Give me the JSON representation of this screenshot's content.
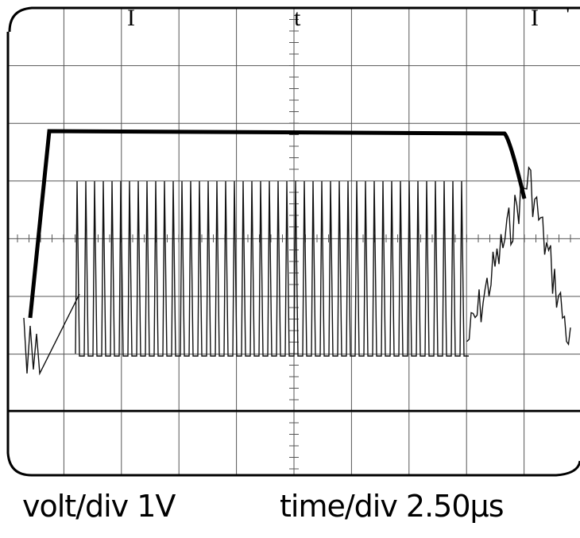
{
  "screen": {
    "markers": [
      "I",
      "t",
      "I",
      "'"
    ]
  },
  "footer": {
    "volt_div": "volt/div 1V",
    "time_div": "time/div 2.50µs"
  }
}
